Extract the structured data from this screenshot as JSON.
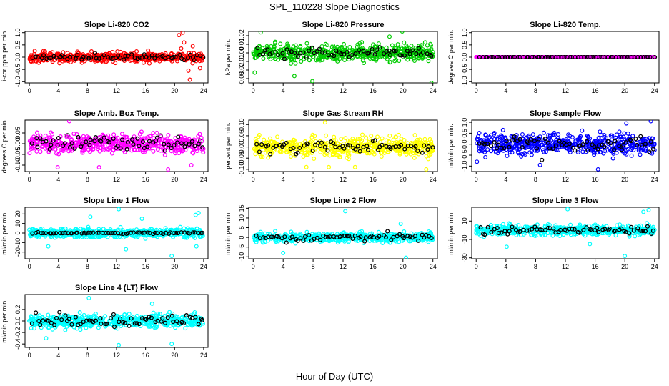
{
  "figure": {
    "title": "SPL_110228  Slope Diagnostics",
    "xlabel": "Hour of Day (UTC)"
  },
  "chart_data": [
    {
      "type": "scatter",
      "title": "Slope Li-820 CO2",
      "ylabel": "Li-cor ppm per min.",
      "color": "#ff0000",
      "overlay_color": "#000000",
      "xlim": [
        0,
        24
      ],
      "xticks": [
        0,
        4,
        8,
        12,
        16,
        20,
        24
      ],
      "ylim": [
        -1.05,
        1.05
      ],
      "yticks": [
        -1.0,
        -0.5,
        0.0,
        0.5,
        1.0
      ],
      "ytick_labels": [
        "-1.0",
        "-0.5",
        "0.0",
        "0.5",
        "1.0"
      ],
      "spread": 0.17,
      "overlay_spread": 0.1,
      "outliers": [
        [
          20.6,
          0.9
        ],
        [
          21.1,
          1.0
        ],
        [
          21.3,
          0.6
        ],
        [
          21.9,
          -0.55
        ],
        [
          22.1,
          -0.92
        ],
        [
          20.9,
          0.35
        ],
        [
          22.5,
          0.45
        ],
        [
          23.5,
          -0.45
        ]
      ]
    },
    {
      "type": "scatter",
      "title": "Slope Li-820 Pressure",
      "ylabel": "kPa per min.",
      "color": "#00cc00",
      "overlay_color": "#000000",
      "xlim": [
        0,
        24
      ],
      "xticks": [
        0,
        4,
        8,
        12,
        16,
        20,
        24
      ],
      "ylim": [
        -0.035,
        0.025
      ],
      "yticks": [
        -0.03,
        -0.02,
        -0.01,
        0.0,
        0.01,
        0.02
      ],
      "ytick_labels": [
        "-0.03",
        "-0.02",
        "-0.01",
        "0.00",
        "0.01",
        "0.02"
      ],
      "spread": 0.008,
      "overlay_spread": 0.006,
      "outliers": [
        [
          0.2,
          -0.023
        ],
        [
          1.0,
          0.024
        ],
        [
          7.9,
          -0.033
        ],
        [
          19.9,
          0.025
        ],
        [
          23.8,
          -0.035
        ],
        [
          18.2,
          0.019
        ],
        [
          5.5,
          -0.027
        ]
      ]
    },
    {
      "type": "scatter",
      "title": "Slope Li-820 Temp.",
      "ylabel": "degrees C per min.",
      "color": "#ff00ff",
      "overlay_color": "#000000",
      "xlim": [
        0,
        24
      ],
      "xticks": [
        0,
        4,
        8,
        12,
        16,
        20,
        24
      ],
      "ylim": [
        -1.05,
        1.05
      ],
      "yticks": [
        -1.0,
        -0.5,
        0.0,
        0.5,
        1.0
      ],
      "ytick_labels": [
        "-1.0",
        "-0.5",
        "0.0",
        "0.5",
        "1.0"
      ],
      "spread": 0.0,
      "overlay_spread": 0.0,
      "outliers": []
    },
    {
      "type": "scatter",
      "title": "Slope Amb. Box Temp.",
      "ylabel": "degrees C per min.",
      "color": "#ff00ff",
      "overlay_color": "#000000",
      "xlim": [
        0,
        24
      ],
      "xticks": [
        0,
        4,
        8,
        12,
        16,
        20,
        24
      ],
      "ylim": [
        -0.13,
        0.11
      ],
      "yticks": [
        -0.1,
        -0.05,
        0.0,
        0.05
      ],
      "ytick_labels": [
        "-0.10",
        "-0.05",
        "0.00",
        "0.05"
      ],
      "spread": 0.035,
      "overlay_spread": 0.025,
      "outliers": [
        [
          5.5,
          0.105
        ],
        [
          19.1,
          -0.12
        ],
        [
          3.9,
          -0.11
        ],
        [
          9.6,
          -0.11
        ],
        [
          22.3,
          -0.1
        ]
      ]
    },
    {
      "type": "scatter",
      "title": "Slope Gas Stream RH",
      "ylabel": "percent per min.",
      "color": "#ffff00",
      "overlay_color": "#000000",
      "xlim": [
        0,
        24
      ],
      "xticks": [
        0,
        4,
        8,
        12,
        16,
        20,
        24
      ],
      "ylim": [
        -0.11,
        0.12
      ],
      "yticks": [
        -0.1,
        -0.05,
        0.0,
        0.05,
        0.1
      ],
      "ytick_labels": [
        "-0.10",
        "-0.05",
        "0.00",
        "0.05",
        "0.10"
      ],
      "spread": 0.035,
      "overlay_spread": 0.025,
      "outliers": [
        [
          9.6,
          0.11
        ],
        [
          10.1,
          -0.09
        ],
        [
          13.6,
          -0.09
        ],
        [
          23.1,
          -0.1
        ],
        [
          7.1,
          -0.09
        ]
      ]
    },
    {
      "type": "scatter",
      "title": "Slope Sample Flow",
      "ylabel": "ml/min per min.",
      "color": "#0000ff",
      "overlay_color": "#000000",
      "xlim": [
        0,
        24
      ],
      "xticks": [
        0,
        4,
        8,
        12,
        16,
        20,
        24
      ],
      "ylim": [
        -1.25,
        1.1
      ],
      "yticks": [
        -1.0,
        -0.5,
        0.0,
        0.5,
        1.0
      ],
      "ytick_labels": [
        "-1.0",
        "-0.5",
        "0.0",
        "0.5",
        "1.0"
      ],
      "spread": 0.42,
      "overlay_spread": 0.25,
      "outliers": [
        [
          16.4,
          -1.15
        ],
        [
          23.5,
          1.05
        ],
        [
          0.1,
          -0.8
        ],
        [
          8.6,
          -0.95
        ],
        [
          20.2,
          0.95
        ]
      ]
    },
    {
      "type": "scatter",
      "title": "Slope Line 1 Flow",
      "ylabel": "ml/min per min.",
      "color": "#00ffff",
      "overlay_color": "#000000",
      "xlim": [
        0,
        24
      ],
      "xticks": [
        0,
        4,
        8,
        12,
        16,
        20,
        24
      ],
      "ylim": [
        -27,
        27
      ],
      "yticks": [
        -20,
        -10,
        0,
        10,
        20
      ],
      "ytick_labels": [
        "-20",
        "-10",
        "0",
        "10",
        "20"
      ],
      "spread": 4.0,
      "overlay_spread": 0.6,
      "outliers": [
        [
          12.3,
          25
        ],
        [
          19.6,
          -24
        ],
        [
          8.4,
          17
        ],
        [
          22.9,
          19
        ],
        [
          23.3,
          21
        ],
        [
          2.6,
          -14
        ],
        [
          13.3,
          -17
        ],
        [
          23.0,
          -14
        ],
        [
          15.5,
          15
        ]
      ]
    },
    {
      "type": "scatter",
      "title": "Slope Line 2 Flow",
      "ylabel": "ml/min per min.",
      "color": "#00ffff",
      "overlay_color": "#000000",
      "xlim": [
        0,
        24
      ],
      "xticks": [
        0,
        4,
        8,
        12,
        16,
        20,
        24
      ],
      "ylim": [
        -11,
        15.5
      ],
      "yticks": [
        -10,
        -5,
        0,
        5,
        10,
        15
      ],
      "ytick_labels": [
        "-10",
        "-5",
        "0",
        "5",
        "10",
        "15"
      ],
      "spread": 2.0,
      "overlay_spread": 1.6,
      "outliers": [
        [
          12.3,
          13.5
        ],
        [
          4.0,
          -8
        ],
        [
          20.4,
          -10.5
        ],
        [
          19.7,
          7
        ]
      ]
    },
    {
      "type": "scatter",
      "title": "Slope Line 3 Flow",
      "ylabel": "ml/min per min.",
      "color": "#00ffff",
      "overlay_color": "#000000",
      "xlim": [
        0,
        24
      ],
      "xticks": [
        0,
        4,
        8,
        12,
        16,
        20,
        24
      ],
      "ylim": [
        -31,
        25
      ],
      "yticks": [
        -30,
        -10,
        10
      ],
      "ytick_labels": [
        "-30",
        "-10",
        "10"
      ],
      "spread": 5.0,
      "overlay_spread": 3.5,
      "outliers": [
        [
          20.0,
          -28
        ],
        [
          12.3,
          23
        ],
        [
          23.2,
          22
        ],
        [
          4.1,
          -18
        ],
        [
          22.5,
          20
        ],
        [
          15.3,
          -15
        ]
      ]
    },
    {
      "type": "scatter",
      "title": "Slope Line 4 (LT) Flow",
      "ylabel": "ml/min per min.",
      "color": "#00ffff",
      "overlay_color": "#000000",
      "xlim": [
        0,
        24
      ],
      "xticks": [
        0,
        4,
        8,
        12,
        16,
        20,
        24
      ],
      "ylim": [
        -0.46,
        0.46
      ],
      "yticks": [
        -0.4,
        -0.2,
        0.0,
        0.2
      ],
      "ytick_labels": [
        "-0.4",
        "-0.2",
        "0.0",
        "0.2"
      ],
      "spread": 0.1,
      "overlay_spread": 0.08,
      "outliers": [
        [
          8.2,
          0.4
        ],
        [
          12.3,
          -0.42
        ],
        [
          19.6,
          -0.4
        ],
        [
          2.3,
          -0.3
        ],
        [
          16.9,
          0.3
        ]
      ]
    }
  ]
}
